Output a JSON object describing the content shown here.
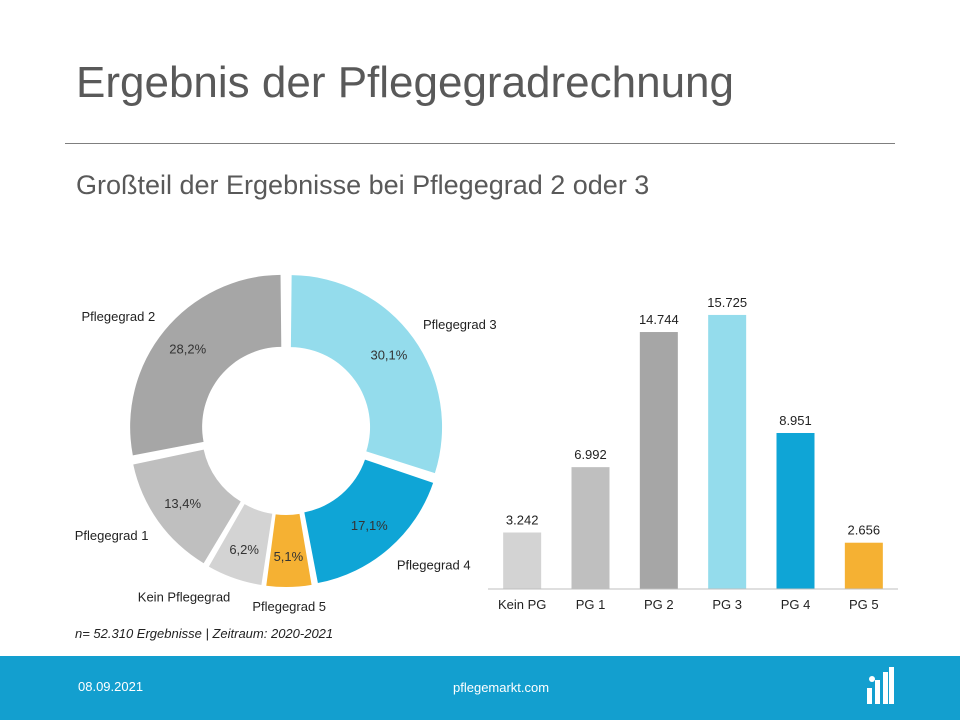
{
  "slide": {
    "title": "Ergebnis der Pflegegradrechnung",
    "subtitle": "Großteil der Ergebnisse bei Pflegegrad 2 oder 3",
    "footnote": "n= 52.310 Ergebnisse | Zeitraum: 2020-2021",
    "footer_date": "08.09.2021",
    "footer_site": "pflegemarkt.com",
    "logo_icon": "pflegemarkt-logo-icon"
  },
  "colors": {
    "footer_bar": "#139fcf",
    "kein_pflegegrad": "#d3d3d3",
    "pflegegrad_1": "#bfbfbf",
    "pflegegrad_2": "#a6a6a6",
    "pflegegrad_3": "#94dcec",
    "pflegegrad_4": "#0fa5d6",
    "pflegegrad_5": "#f5b133"
  },
  "chart_data": [
    {
      "type": "pie",
      "variant": "donut",
      "slices": [
        {
          "label": "Pflegegrad 3",
          "value": 30.1,
          "value_label": "30,1%",
          "color": "#94dcec"
        },
        {
          "label": "Pflegegrad 4",
          "value": 17.1,
          "value_label": "17,1%",
          "color": "#0fa5d6"
        },
        {
          "label": "Pflegegrad 5",
          "value": 5.1,
          "value_label": "5,1%",
          "color": "#f5b133"
        },
        {
          "label": "Kein Pflegegrad",
          "value": 6.2,
          "value_label": "6,2%",
          "color": "#d3d3d3"
        },
        {
          "label": "Pflegegrad 1",
          "value": 13.4,
          "value_label": "13,4%",
          "color": "#bfbfbf"
        },
        {
          "label": "Pflegegrad 2",
          "value": 28.2,
          "value_label": "28,2%",
          "color": "#a6a6a6"
        }
      ]
    },
    {
      "type": "bar",
      "categories": [
        "Kein PG",
        "PG 1",
        "PG 2",
        "PG 3",
        "PG 4",
        "PG 5"
      ],
      "values": [
        3242,
        6992,
        14744,
        15725,
        8951,
        2656
      ],
      "value_labels": [
        "3.242",
        "6.992",
        "14.744",
        "15.725",
        "8.951",
        "2.656"
      ],
      "colors": [
        "#d3d3d3",
        "#bfbfbf",
        "#a6a6a6",
        "#94dcec",
        "#0fa5d6",
        "#f5b133"
      ],
      "ylim": [
        0,
        17500
      ],
      "grid": false,
      "yaxis_visible": false
    }
  ]
}
